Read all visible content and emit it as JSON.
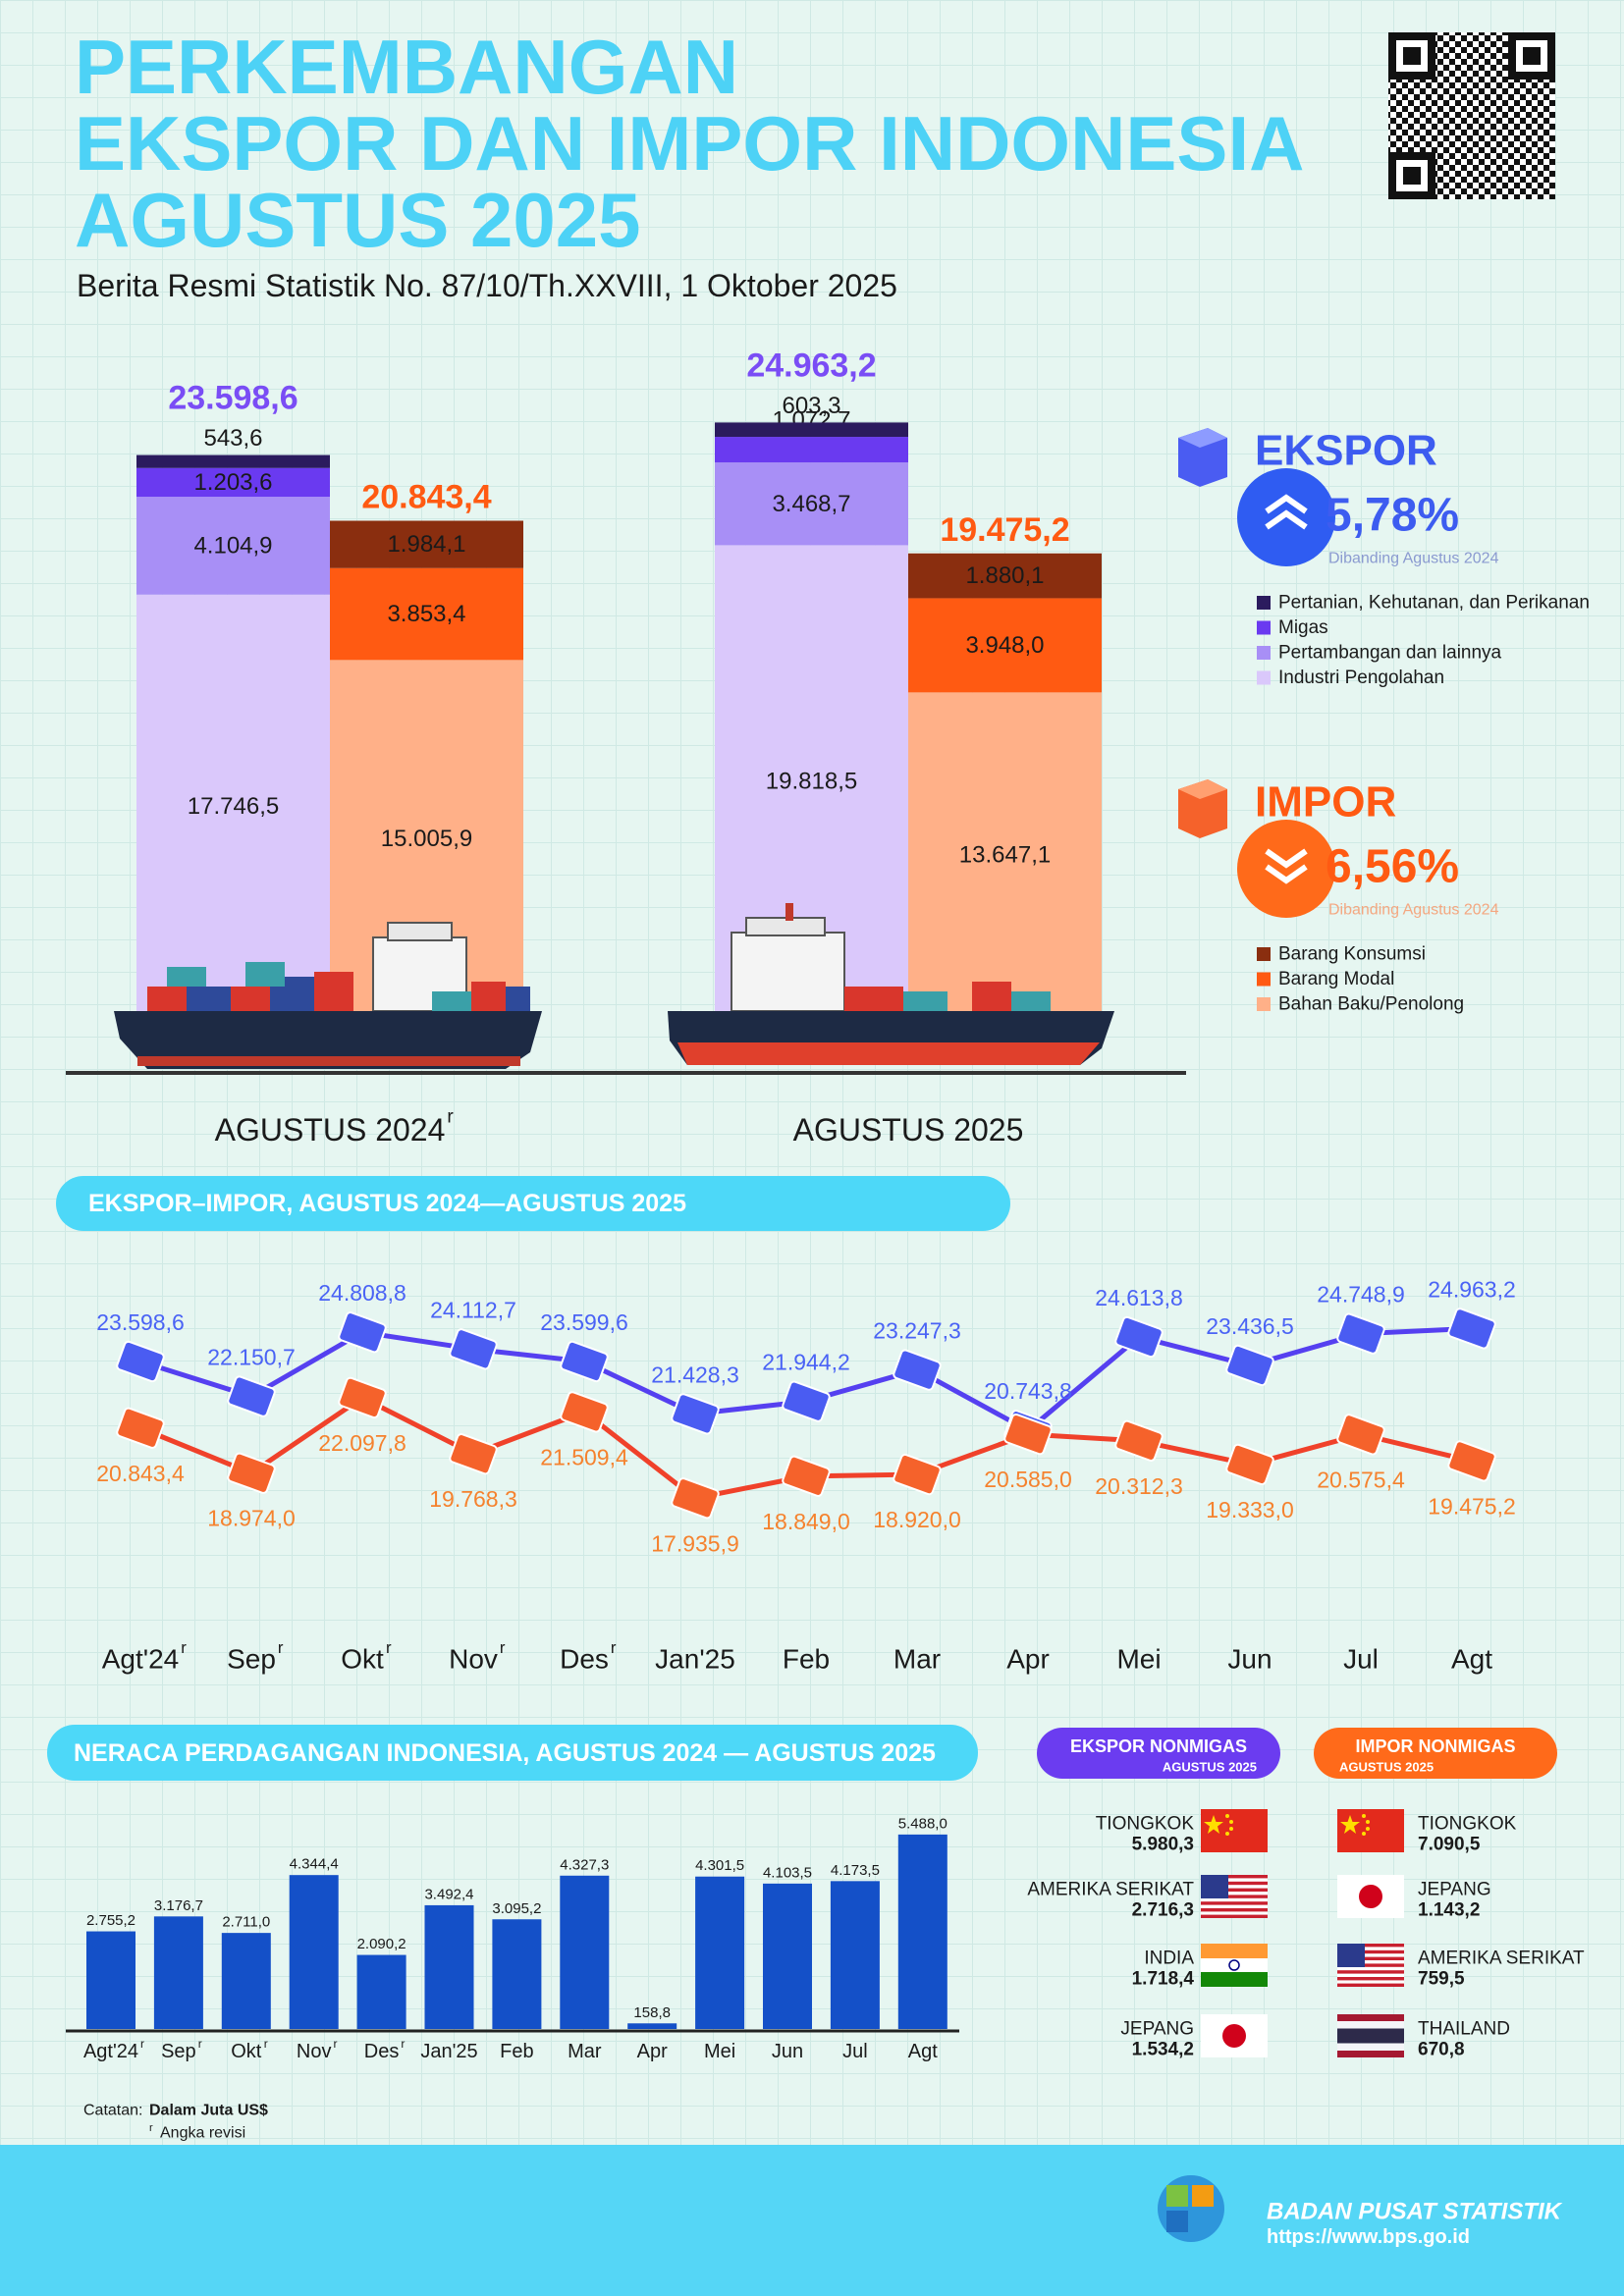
{
  "header": {
    "title_lines": [
      "PERKEMBANGAN",
      "EKSPOR DAN IMPOR INDONESIA",
      "AGUSTUS 2025"
    ],
    "subtitle": "Berita Resmi Statistik No. 87/10/Th.XXVIII, 1 Oktober 2025"
  },
  "chart_data": [
    {
      "type": "bar",
      "stacked": true,
      "categories": [
        "AGUSTUS 2024",
        "AGUSTUS 2025"
      ],
      "category_marks": [
        "r",
        null
      ],
      "groups": [
        {
          "name": "EKSPOR",
          "color": "#3d5cf0",
          "badge_color": "#2f5cf2",
          "direction": "up",
          "change_label": "5,78%",
          "change_note": "Dibanding Agustus 2024",
          "note_color": "#8a9ad0",
          "total_color": "#7a4df5",
          "totals": [
            23598.6,
            24963.2
          ],
          "total_labels": [
            "23.598,6",
            "24.963,2"
          ],
          "series": [
            {
              "name": "Pertanian, Kehutanan, dan Perikanan",
              "color": "#2b1b5e",
              "values": [
                543.6,
                603.3
              ],
              "value_labels": [
                "543,6",
                "603,3"
              ]
            },
            {
              "name": "Migas",
              "color": "#6a3af0",
              "values": [
                1203.6,
                1072.7
              ],
              "value_labels": [
                "1.203,6",
                "1.072,7"
              ]
            },
            {
              "name": "Pertambangan dan lainnya",
              "color": "#a88ff6",
              "values": [
                4104.9,
                3468.7
              ],
              "value_labels": [
                "4.104,9",
                "3.468,7"
              ]
            },
            {
              "name": "Industri Pengolahan",
              "color": "#dac8fb",
              "values": [
                17746.5,
                19818.5
              ],
              "value_labels": [
                "17.746,5",
                "19.818,5"
              ]
            }
          ]
        },
        {
          "name": "IMPOR",
          "color": "#ff5a12",
          "badge_color": "#ff6a1a",
          "direction": "down",
          "change_label": "6,56%",
          "change_note": "Dibanding Agustus 2024",
          "note_color": "#f4a780",
          "total_color": "#ff5a12",
          "totals": [
            20843.4,
            19475.2
          ],
          "total_labels": [
            "20.843,4",
            "19.475,2"
          ],
          "series": [
            {
              "name": "Barang Konsumsi",
              "color": "#8a2e0f",
              "values": [
                1984.1,
                1880.1
              ],
              "value_labels": [
                "1.984,1",
                "1.880,1"
              ]
            },
            {
              "name": "Barang Modal",
              "color": "#ff5a12",
              "values": [
                3853.4,
                3948.0
              ],
              "value_labels": [
                "3.853,4",
                "3.948,0"
              ]
            },
            {
              "name": "Bahan Baku/Penolong",
              "color": "#ffb088",
              "values": [
                15005.9,
                13647.1
              ],
              "value_labels": [
                "15.005,9",
                "13.647,1"
              ]
            }
          ]
        }
      ]
    },
    {
      "type": "line",
      "title": "EKSPOR–IMPOR, AGUSTUS 2024—AGUSTUS 2025",
      "categories": [
        "Agt'24",
        "Sep",
        "Okt",
        "Nov",
        "Des",
        "Jan'25",
        "Feb",
        "Mar",
        "Apr",
        "Mei",
        "Jun",
        "Jul",
        "Agt"
      ],
      "category_marks": [
        "r",
        "r",
        "r",
        "r",
        "r",
        null,
        null,
        null,
        null,
        null,
        null,
        null,
        null
      ],
      "series": [
        {
          "color": "#5540f0",
          "label_color": "#4a63f5",
          "marker_color": "#4a5cf2",
          "values": [
            23598.6,
            22150.7,
            24808.8,
            24112.7,
            23599.6,
            21428.3,
            21944.2,
            23247.3,
            20743.8,
            24613.8,
            23436.5,
            24748.9,
            24963.2
          ],
          "value_labels": [
            "23.598,6",
            "22.150,7",
            "24.808,8",
            "24.112,7",
            "23.599,6",
            "21.428,3",
            "21.944,2",
            "23.247,3",
            "20.743,8",
            "24.613,8",
            "23.436,5",
            "24.748,9",
            "24.963,2"
          ]
        },
        {
          "color": "#f0412a",
          "label_color": "#f5822e",
          "marker_color": "#f5622b",
          "values": [
            20843.4,
            18974.0,
            22097.8,
            19768.3,
            21509.4,
            17935.9,
            18849.0,
            18920.0,
            20585.0,
            20312.3,
            19333.0,
            20575.4,
            19475.2
          ],
          "value_labels": [
            "20.843,4",
            "18.974,0",
            "22.097,8",
            "19.768,3",
            "21.509,4",
            "17.935,9",
            "18.849,0",
            "18.920,0",
            "20.585,0",
            "20.312,3",
            "19.333,0",
            "20.575,4",
            "19.475,2"
          ]
        }
      ]
    },
    {
      "type": "bar",
      "title": "NERACA PERDAGANGAN INDONESIA, AGUSTUS 2024 — AGUSTUS 2025",
      "categories": [
        "Agt'24",
        "Sep",
        "Okt",
        "Nov",
        "Des",
        "Jan'25",
        "Feb",
        "Mar",
        "Apr",
        "Mei",
        "Jun",
        "Jul",
        "Agt"
      ],
      "category_marks": [
        "r",
        "r",
        "r",
        "r",
        "r",
        null,
        null,
        null,
        null,
        null,
        null,
        null,
        null
      ],
      "color": "#1450c8",
      "values": [
        2755.2,
        3176.7,
        2711.0,
        4344.4,
        2090.2,
        3492.4,
        3095.2,
        4327.3,
        158.8,
        4301.5,
        4103.5,
        4173.5,
        5488.0
      ],
      "value_labels": [
        "2.755,2",
        "3.176,7",
        "2.711,0",
        "4.344,4",
        "2.090,2",
        "3.492,4",
        "3.095,2",
        "4.327,3",
        "158,8",
        "4.301,5",
        "4.103,5",
        "4.173,5",
        "5.488,0"
      ]
    }
  ],
  "partners": {
    "ekspor": {
      "title": "EKSPOR NONMIGAS",
      "period": "AGUSTUS 2025",
      "countries": [
        {
          "name": "TIONGKOK",
          "value": "5.980,3"
        },
        {
          "name": "AMERIKA SERIKAT",
          "value": "2.716,3"
        },
        {
          "name": "INDIA",
          "value": "1.718,4"
        },
        {
          "name": "JEPANG",
          "value": "1.534,2"
        }
      ]
    },
    "impor": {
      "title": "IMPOR NONMIGAS",
      "period": "AGUSTUS 2025",
      "countries": [
        {
          "name": "TIONGKOK",
          "value": "7.090,5"
        },
        {
          "name": "JEPANG",
          "value": "1.143,2"
        },
        {
          "name": "AMERIKA SERIKAT",
          "value": "759,5"
        },
        {
          "name": "THAILAND",
          "value": "670,8"
        }
      ]
    }
  },
  "notes": {
    "label": "Catatan:",
    "unit": "Dalam Juta US$",
    "revision_mark": "r",
    "revision": "Angka revisi"
  },
  "footer": {
    "org": "BADAN PUSAT STATISTIK",
    "url": "https://www.bps.go.id"
  }
}
